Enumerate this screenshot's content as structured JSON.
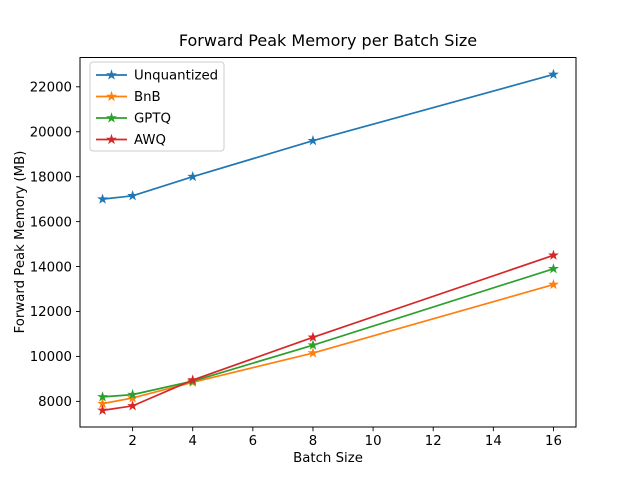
{
  "figure": {
    "background": "#ffffff"
  },
  "chart_data": {
    "type": "line",
    "title": "Forward Peak Memory per Batch Size",
    "xlabel": "Batch Size",
    "ylabel": "Forward Peak Memory (MB)",
    "x": [
      1,
      2,
      4,
      8,
      16
    ],
    "series": [
      {
        "name": "Unquantized",
        "color": "#1f77b4",
        "values": [
          17000,
          17150,
          18000,
          19600,
          22550
        ]
      },
      {
        "name": "BnB",
        "color": "#ff7f0e",
        "values": [
          7900,
          8150,
          8850,
          10150,
          13200
        ]
      },
      {
        "name": "GPTQ",
        "color": "#2ca02c",
        "values": [
          8200,
          8300,
          8900,
          10500,
          13900
        ]
      },
      {
        "name": "AWQ",
        "color": "#d62728",
        "values": [
          7600,
          7800,
          8950,
          10850,
          14500
        ]
      }
    ],
    "xticks": [
      2,
      4,
      6,
      8,
      10,
      12,
      14,
      16
    ],
    "yticks": [
      8000,
      10000,
      12000,
      14000,
      16000,
      18000,
      20000,
      22000
    ],
    "xlim": [
      0.25,
      16.75
    ],
    "ylim": [
      6850,
      23300
    ],
    "marker": "star",
    "grid": false,
    "legend": {
      "position": "upper-left",
      "entries": [
        "Unquantized",
        "BnB",
        "GPTQ",
        "AWQ"
      ]
    },
    "axis_color": "#000000",
    "legend_border_color": "#cccccc"
  }
}
